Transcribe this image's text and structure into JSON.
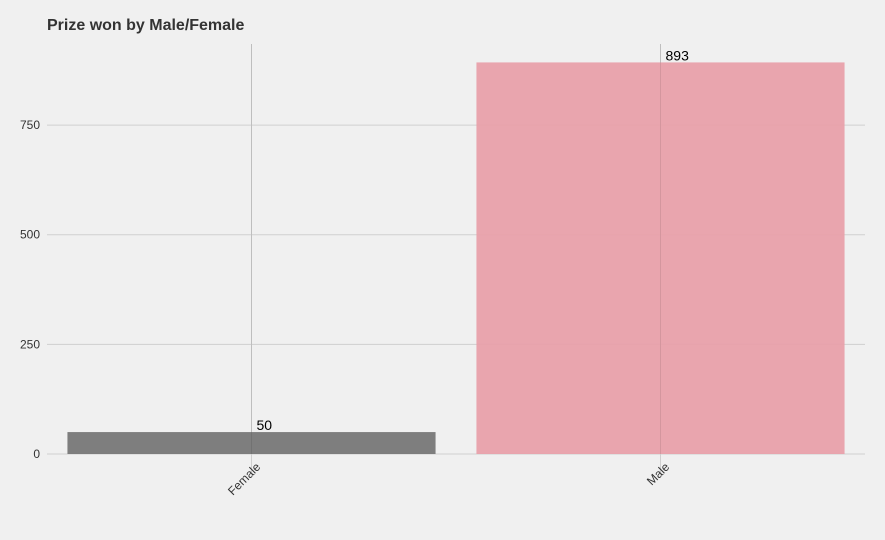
{
  "chart_data": {
    "type": "bar",
    "title": "Prize won by Male/Female",
    "xlabel": "",
    "ylabel": "",
    "categories": [
      "Female",
      "Male"
    ],
    "values": [
      50,
      893
    ],
    "data_labels": [
      "50",
      "893"
    ],
    "bar_colors": [
      "#777777",
      "#e8a0aa"
    ],
    "ylim": [
      0,
      935
    ],
    "yticks": [
      0,
      250,
      500,
      750
    ],
    "ytick_labels": [
      "0",
      "250",
      "500",
      "750"
    ],
    "grid": true,
    "legend": "none",
    "x_tick_rotation": "45 degrees"
  }
}
